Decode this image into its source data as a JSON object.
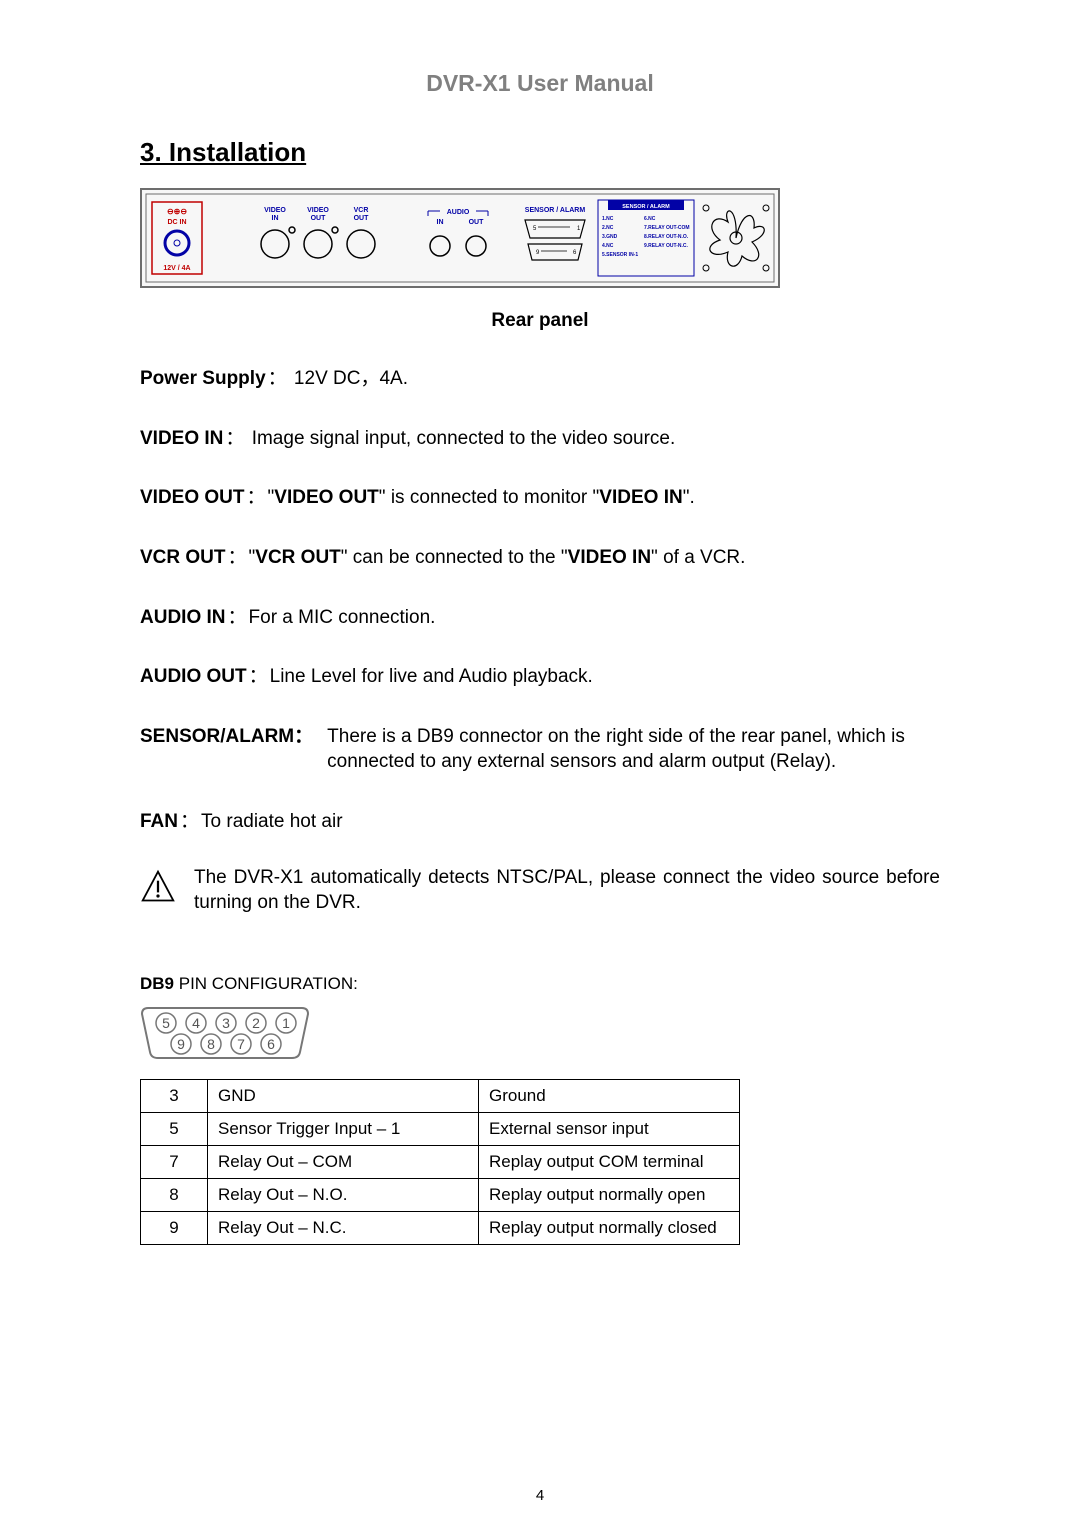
{
  "doc_title": "DVR-X1 User Manual",
  "section_heading": "3. Installation",
  "caption": "Rear panel",
  "colors": {
    "title_gray": "#808080",
    "panel_border": "#6d6d6d",
    "panel_blue": "#0202a6",
    "panel_red": "#c00000",
    "panel_black": "#000000",
    "page_bg": "#ffffff"
  },
  "rear_panel": {
    "dc_in": {
      "symbols": "⊖⊕⊖",
      "label1": "DC IN",
      "label2": "12V / 4A"
    },
    "video": {
      "in": "VIDEO\nIN",
      "out": "VIDEO\nOUT",
      "vcr": "VCR\nOUT"
    },
    "audio": {
      "group": "AUDIO",
      "in": "IN",
      "out": "OUT"
    },
    "sensor_alarm": {
      "label": "SENSOR / ALARM",
      "box_label": "SENSOR / ALARM",
      "pins_left": [
        "1.NC",
        "2.NC",
        "3.GND",
        "4.NC",
        "5.SENSOR IN-1"
      ],
      "pins_right": [
        "6.NC",
        "7.RELAY OUT-COM",
        "8.RELAY OUT-N.O.",
        "9.RELAY OUT-N.C."
      ],
      "row1_left": "5",
      "row1_right": "1",
      "row2_left": "9",
      "row2_right": "6"
    }
  },
  "defs": {
    "power_supply": {
      "label": "Power Supply",
      "value": " 12V DC，4A."
    },
    "video_in": {
      "label": "VIDEO IN",
      "value": " Image signal input, connected to the video source."
    },
    "video_out": {
      "label": "VIDEO OUT",
      "pre": "\"",
      "b1": "VIDEO OUT",
      "mid": "\" is connected to monitor \"",
      "b2": "VIDEO IN",
      "post": "\"."
    },
    "vcr_out": {
      "label": "VCR OUT",
      "pre": "\"",
      "b1": "VCR OUT",
      "mid": "\" can be connected to the \"",
      "b2": "VIDEO IN",
      "post": "\" of a VCR."
    },
    "audio_in": {
      "label": "AUDIO IN",
      "value": "For a MIC connection."
    },
    "audio_out": {
      "label": "AUDIO OUT",
      "value": "Line Level for live and Audio playback."
    },
    "sensor_alarm": {
      "label": "SENSOR/ALARM",
      "value": " There is a DB9 connector on the right side of the rear panel, which is connected to any external sensors and alarm output (Relay)."
    },
    "fan": {
      "label": "FAN",
      "value": "To radiate hot air"
    },
    "note": "The DVR-X1 automatically detects NTSC/PAL, please connect the video source before turning on the DVR."
  },
  "db9": {
    "heading_bold": "DB9",
    "heading_rest": " PIN CONFIGURATION:",
    "top_row": [
      "5",
      "4",
      "3",
      "2",
      "1"
    ],
    "bottom_row": [
      "9",
      "8",
      "7",
      "6"
    ]
  },
  "pin_table": {
    "rows": [
      {
        "pin": "3",
        "name": "GND",
        "desc": "Ground"
      },
      {
        "pin": "5",
        "name": "Sensor Trigger Input – 1",
        "desc": "External sensor input"
      },
      {
        "pin": "7",
        "name": "Relay Out – COM",
        "desc": "Replay output COM terminal"
      },
      {
        "pin": "8",
        "name": "Relay Out – N.O.",
        "desc": "Replay output normally open"
      },
      {
        "pin": "9",
        "name": "Relay Out – N.C.",
        "desc": "Replay output normally closed"
      }
    ]
  },
  "page_number": "4"
}
